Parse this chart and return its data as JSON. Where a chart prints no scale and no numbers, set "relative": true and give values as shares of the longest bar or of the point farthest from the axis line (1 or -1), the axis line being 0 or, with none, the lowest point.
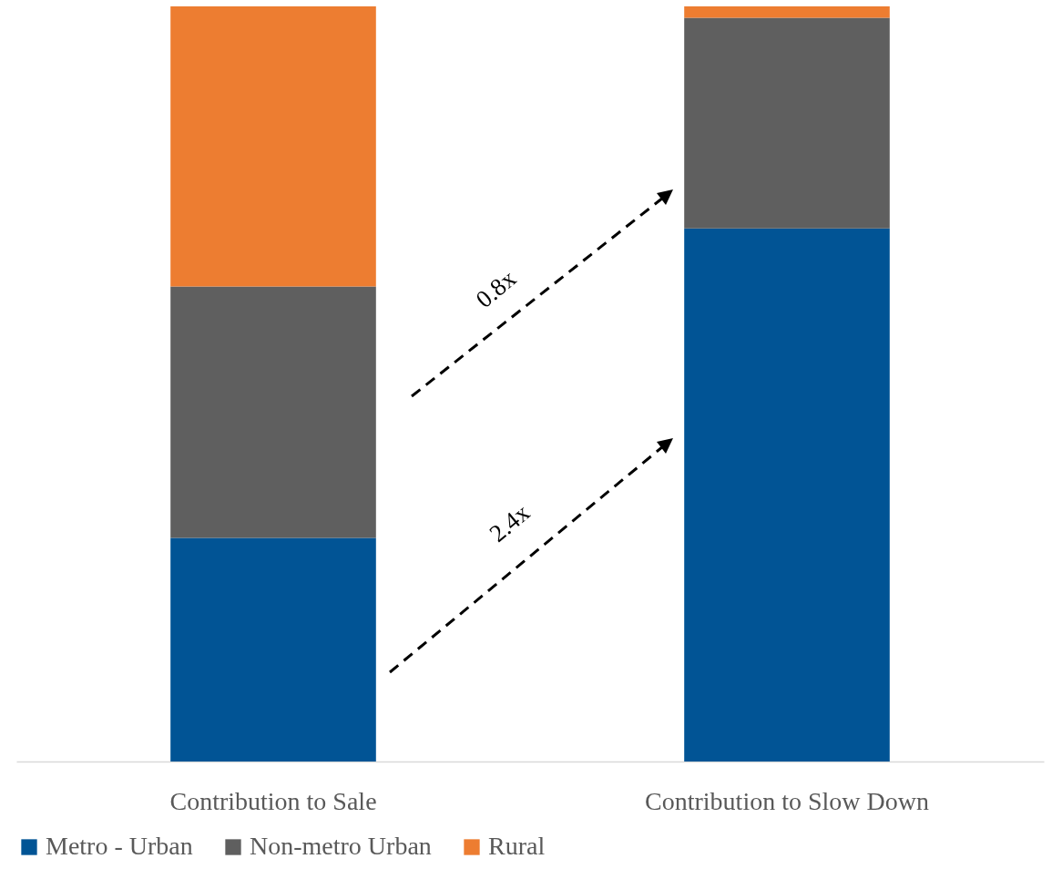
{
  "chart_data": {
    "type": "bar",
    "stacked": true,
    "relative": true,
    "categories": [
      "Contribution to Sale",
      "Contribution to Slow Down"
    ],
    "series": [
      {
        "name": "Metro - Urban",
        "color": "#015495",
        "values": [
          0.296,
          0.706
        ]
      },
      {
        "name": "Non-metro Urban",
        "color": "#5f5f5f",
        "values": [
          0.333,
          0.279
        ]
      },
      {
        "name": "Rural",
        "color": "#ed7d31",
        "values": [
          0.371,
          0.015
        ]
      }
    ],
    "legend": "bottom",
    "annotations": [
      "0.8x",
      "2.4x"
    ]
  }
}
